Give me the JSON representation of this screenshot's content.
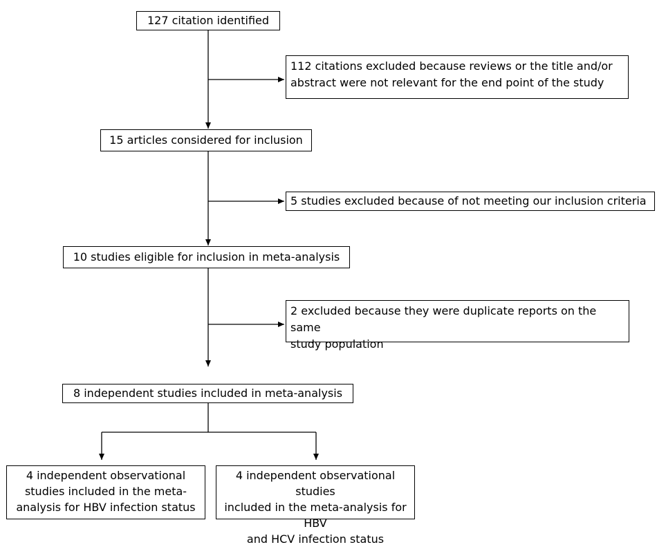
{
  "nodes": {
    "identified": "127 citation identified",
    "excluded_1": [
      "112 citations excluded because reviews or the title and/or",
      "abstract were not relevant for the end point of the study"
    ],
    "considered": "15 articles considered for inclusion",
    "excluded_2": "5 studies excluded because of not meeting our inclusion criteria",
    "eligible": "10 studies eligible for inclusion in meta-analysis",
    "excluded_3": [
      "2 excluded because they were duplicate reports on the same",
      "study population"
    ],
    "included": "8 independent studies included in meta-analysis",
    "hbv": [
      "4 independent observational",
      "studies included in the meta-",
      "analysis for HBV infection status"
    ],
    "hbv_hcv": [
      "4 independent observational studies",
      "included in the meta-analysis for HBV",
      "and HCV infection status"
    ]
  }
}
